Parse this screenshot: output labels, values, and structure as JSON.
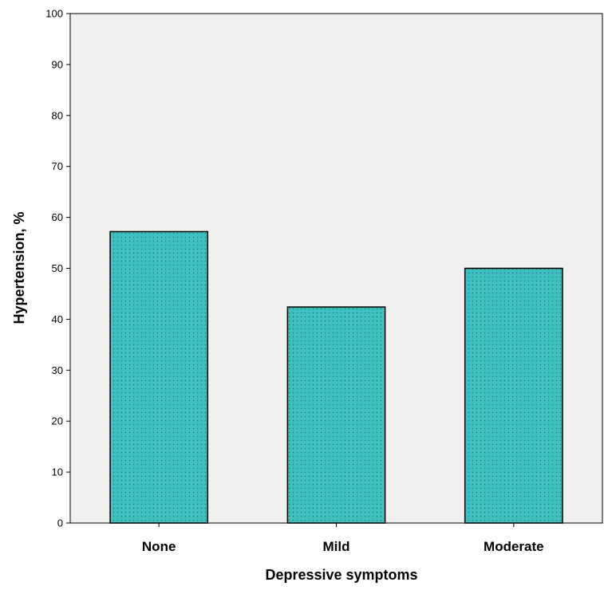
{
  "chart_data": {
    "type": "bar",
    "title": "",
    "xlabel": "Depressive symptoms",
    "ylabel": "Hypertension, %",
    "categories": [
      "None",
      "Mild",
      "Moderate"
    ],
    "values": [
      57.2,
      42.4,
      50.0
    ],
    "ylim": [
      0,
      100
    ],
    "yticks": [
      0,
      10,
      20,
      30,
      40,
      50,
      60,
      70,
      80,
      90,
      100
    ],
    "grid": false,
    "legend": "none",
    "colors": {
      "bar_fill": "#3fbfbf",
      "bar_dots": "#1e7a7a",
      "bar_stroke": "#000000",
      "plot_background": "#f0f0f0"
    }
  }
}
